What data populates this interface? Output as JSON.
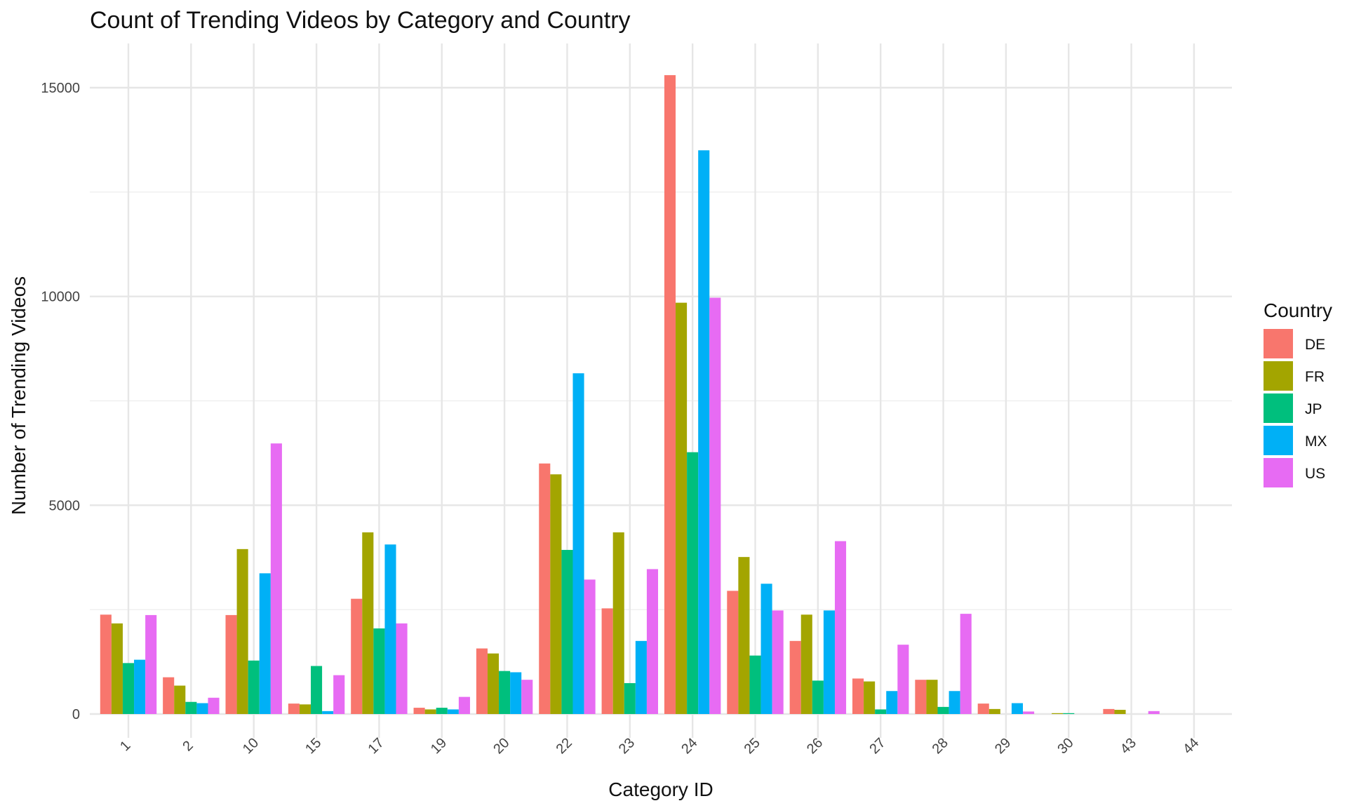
{
  "chart_data": {
    "type": "bar",
    "title": "Count of Trending Videos by Category and Country",
    "xlabel": "Category ID",
    "ylabel": "Number of Trending Videos",
    "categories": [
      "1",
      "2",
      "10",
      "15",
      "17",
      "19",
      "20",
      "22",
      "23",
      "24",
      "25",
      "26",
      "27",
      "28",
      "29",
      "30",
      "43",
      "44"
    ],
    "ylim": [
      0,
      16000
    ],
    "yticks": [
      0,
      5000,
      10000,
      15000
    ],
    "grid": true,
    "legend": {
      "title": "Country",
      "position": "right"
    },
    "series": [
      {
        "name": "DE",
        "color": "#F8766D",
        "values": [
          2380,
          880,
          2370,
          250,
          2760,
          150,
          1570,
          6000,
          2530,
          15300,
          2950,
          1750,
          850,
          820,
          250,
          0,
          120,
          0
        ]
      },
      {
        "name": "FR",
        "color": "#A3A500",
        "values": [
          2170,
          680,
          3950,
          230,
          4350,
          110,
          1450,
          5740,
          4350,
          9850,
          3760,
          2380,
          780,
          820,
          120,
          20,
          100,
          0
        ]
      },
      {
        "name": "JP",
        "color": "#00BF7D",
        "values": [
          1220,
          290,
          1280,
          1150,
          2050,
          150,
          1030,
          3930,
          740,
          6270,
          1400,
          800,
          110,
          170,
          0,
          20,
          0,
          0
        ]
      },
      {
        "name": "MX",
        "color": "#00B0F6",
        "values": [
          1300,
          260,
          3370,
          70,
          4060,
          110,
          1000,
          8160,
          1750,
          13500,
          3120,
          2480,
          550,
          550,
          260,
          0,
          0,
          0
        ]
      },
      {
        "name": "US",
        "color": "#E76BF3",
        "values": [
          2370,
          390,
          6480,
          930,
          2170,
          410,
          820,
          3220,
          3470,
          9970,
          2480,
          4140,
          1660,
          2400,
          60,
          0,
          70,
          0
        ]
      }
    ]
  }
}
